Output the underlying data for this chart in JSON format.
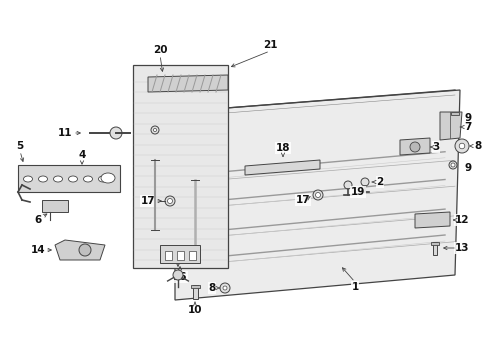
{
  "background_color": "#ffffff",
  "line_color": "#444444",
  "label_color": "#000000",
  "fig_w": 4.9,
  "fig_h": 3.6,
  "dpi": 100
}
